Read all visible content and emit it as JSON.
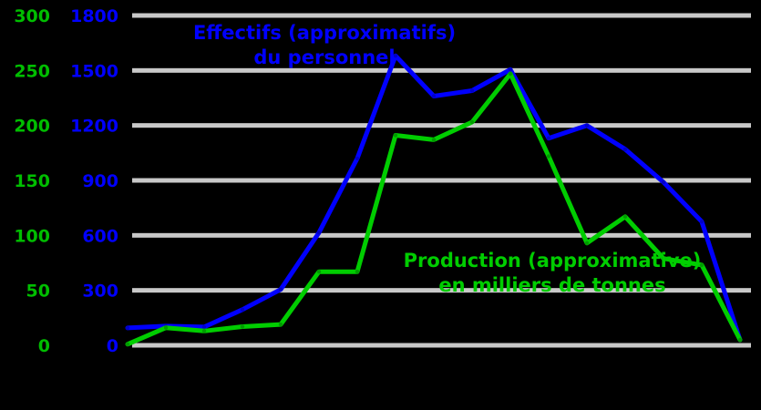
{
  "canvas": {
    "background": "#000000"
  },
  "chart_data": {
    "type": "line",
    "title": "",
    "background": "#000000",
    "grid": {
      "show": true,
      "orientation": "horizontal",
      "color": "#c8c8c8"
    },
    "x_axis": {
      "tick_labels_visible": false,
      "num_points": 17
    },
    "left_axis": {
      "color": "#00be00",
      "min": 0,
      "max": 300,
      "ticks": [
        0,
        50,
        100,
        150,
        200,
        250,
        300
      ]
    },
    "secondary_axis": {
      "color": "#0000ff",
      "min": 0,
      "max": 1800,
      "ticks": [
        0,
        300,
        600,
        900,
        1200,
        1500,
        1800
      ]
    },
    "series": [
      {
        "id": "effectifs",
        "name": "Effectifs (approximatifs) du personnel",
        "color": "#0000ff",
        "marker_color": "#0000c8",
        "axis": "secondary",
        "values": [
          95,
          105,
          100,
          195,
          305,
          615,
          1020,
          1580,
          1360,
          1390,
          1505,
          1130,
          1200,
          1070,
          890,
          675,
          30
        ]
      },
      {
        "id": "production",
        "name": "Production (approximative) en milliers de tonnes",
        "color": "#00cd00",
        "marker_color": "#009b00",
        "axis": "left",
        "values": [
          1,
          16,
          13,
          17,
          19,
          67,
          67,
          191,
          187,
          203,
          247,
          172,
          93,
          117,
          79,
          73,
          5
        ]
      }
    ],
    "annotations": [
      {
        "series": "effectifs",
        "lines": [
          "Effectifs (approximatifs)",
          "du personnel"
        ],
        "color": "#0000ff"
      },
      {
        "series": "production",
        "lines": [
          "Production (approximative)",
          "en milliers de tonnes"
        ],
        "color": "#00cd00"
      }
    ]
  }
}
